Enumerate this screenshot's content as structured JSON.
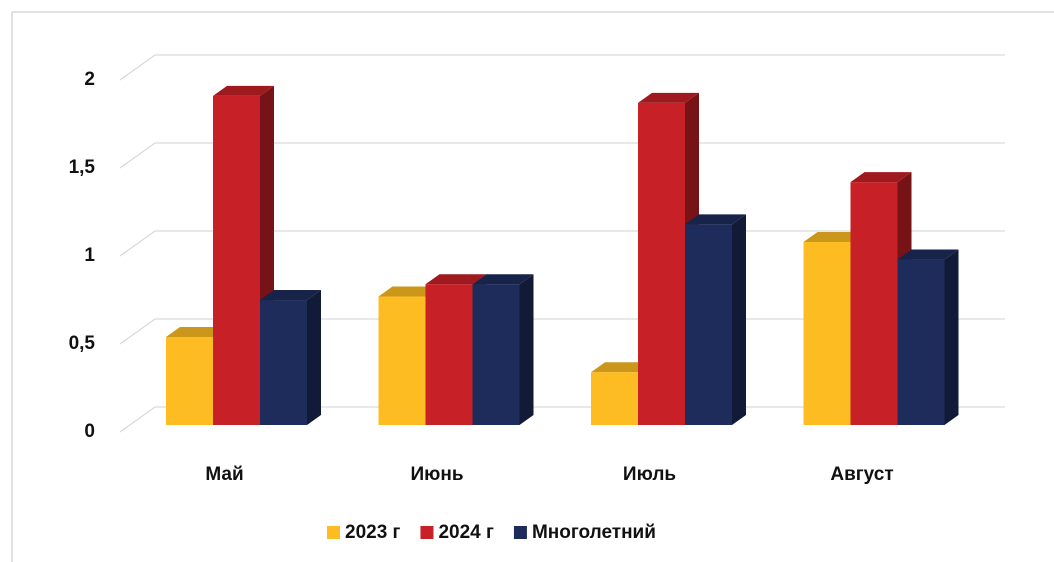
{
  "chart_data": {
    "type": "bar3d",
    "categories": [
      "Май",
      "Июнь",
      "Июль",
      "Август"
    ],
    "series": [
      {
        "name": "2023 г",
        "color": "#fdbd22",
        "values": [
          0.5,
          0.73,
          0.3,
          1.04
        ]
      },
      {
        "name": "2024 г",
        "color": "#c72026",
        "values": [
          1.87,
          0.8,
          1.83,
          1.38
        ]
      },
      {
        "name": "Многолетний",
        "color": "#1d2c5b",
        "values": [
          0.71,
          0.8,
          1.14,
          0.94
        ]
      }
    ],
    "ylim": [
      0,
      2
    ],
    "yticks": [
      0,
      {
        "value": 0.5,
        "label": "0,5"
      },
      1,
      {
        "value": 1.5,
        "label": "1,5"
      },
      2
    ],
    "grid": true,
    "legend": "bottom"
  }
}
